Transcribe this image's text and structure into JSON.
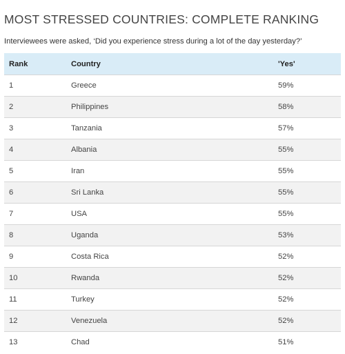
{
  "title": "MOST STRESSED COUNTRIES: COMPLETE RANKING",
  "subtitle": "Interviewees were asked, ‘Did you experience stress during a lot of the day yesterday?’",
  "table": {
    "headers": {
      "rank": "Rank",
      "country": "Country",
      "yes": "'Yes'"
    },
    "rows": [
      {
        "rank": "1",
        "country": "Greece",
        "yes": "59%"
      },
      {
        "rank": "2",
        "country": "Philippines",
        "yes": "58%"
      },
      {
        "rank": "3",
        "country": "Tanzania",
        "yes": "57%"
      },
      {
        "rank": "4",
        "country": "Albania",
        "yes": "55%"
      },
      {
        "rank": "5",
        "country": "Iran",
        "yes": "55%"
      },
      {
        "rank": "6",
        "country": "Sri Lanka",
        "yes": "55%"
      },
      {
        "rank": "7",
        "country": "USA",
        "yes": "55%"
      },
      {
        "rank": "8",
        "country": "Uganda",
        "yes": "53%"
      },
      {
        "rank": "9",
        "country": "Costa Rica",
        "yes": "52%"
      },
      {
        "rank": "10",
        "country": "Rwanda",
        "yes": "52%"
      },
      {
        "rank": "11",
        "country": "Turkey",
        "yes": "52%"
      },
      {
        "rank": "12",
        "country": "Venezuela",
        "yes": "52%"
      },
      {
        "rank": "13",
        "country": "Chad",
        "yes": "51%"
      }
    ]
  },
  "colors": {
    "header_bg": "#d9ecf7",
    "alt_row_bg": "#f2f2f2",
    "row_border": "#d6d6d6"
  }
}
